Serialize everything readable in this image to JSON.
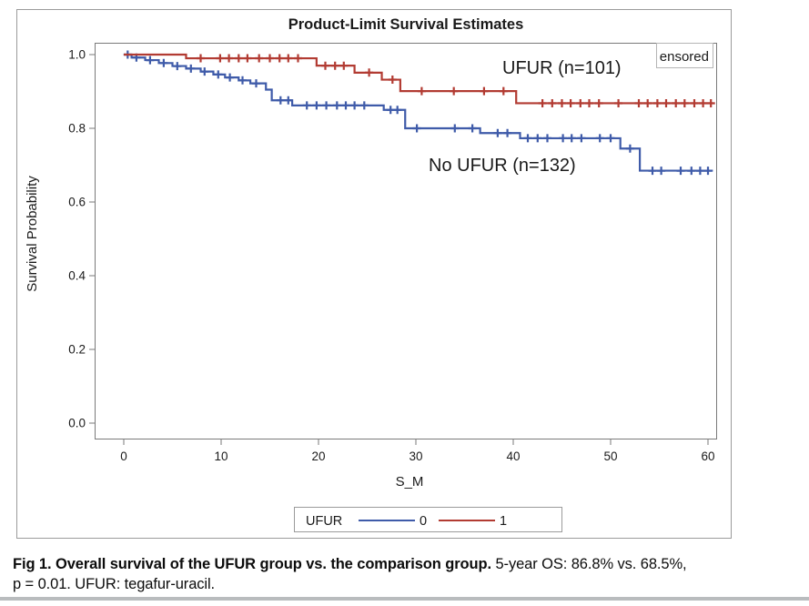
{
  "caption": {
    "bold": "Fig 1. Overall survival of the UFUR group vs. the comparison group.",
    "line1_rest": " 5-year OS: 86.8% vs. 68.5%,",
    "line2": "p = 0.01. UFUR: tegafur-uracil."
  },
  "chart_data": {
    "type": "line",
    "subtype": "kaplan-meier-step",
    "title": "Product-Limit Survival Estimates",
    "xlabel": "S_M",
    "ylabel": "Survival Probability",
    "xlim": [
      0,
      60
    ],
    "ylim": [
      0.0,
      1.0
    ],
    "grid": false,
    "inset_label": "ensored",
    "xticks": [
      {
        "v": 0,
        "label": "0"
      },
      {
        "v": 10,
        "label": "10"
      },
      {
        "v": 20,
        "label": "20"
      },
      {
        "v": 30,
        "label": "30"
      },
      {
        "v": 40,
        "label": "40"
      },
      {
        "v": 50,
        "label": "50"
      },
      {
        "v": 60,
        "label": "60"
      }
    ],
    "yticks": [
      {
        "v": 1.0,
        "label": "1.0"
      },
      {
        "v": 0.8,
        "label": "0.8"
      },
      {
        "v": 0.6,
        "label": "0.6"
      },
      {
        "v": 0.4,
        "label": "0.4"
      },
      {
        "v": 0.2,
        "label": "0.2"
      },
      {
        "v": 0.0,
        "label": "0.0"
      }
    ],
    "series": [
      {
        "id": "1",
        "annotation": "UFUR (n=101)",
        "n": 101,
        "color": "#b23b32",
        "final_survival": 0.868,
        "steps": [
          [
            0,
            1.0
          ],
          [
            6.4,
            0.99
          ],
          [
            19.8,
            0.97
          ],
          [
            23.7,
            0.951
          ],
          [
            26.5,
            0.932
          ],
          [
            28.4,
            0.901
          ],
          [
            40.3,
            0.868
          ],
          [
            60.5,
            0.868
          ]
        ],
        "censors": [
          [
            7.9,
            0.99
          ],
          [
            9.9,
            0.99
          ],
          [
            10.8,
            0.99
          ],
          [
            11.8,
            0.99
          ],
          [
            12.7,
            0.99
          ],
          [
            13.9,
            0.99
          ],
          [
            15.0,
            0.99
          ],
          [
            16.0,
            0.99
          ],
          [
            16.9,
            0.99
          ],
          [
            17.9,
            0.99
          ],
          [
            20.7,
            0.97
          ],
          [
            21.7,
            0.97
          ],
          [
            22.6,
            0.97
          ],
          [
            25.2,
            0.951
          ],
          [
            27.6,
            0.932
          ],
          [
            30.6,
            0.901
          ],
          [
            33.9,
            0.901
          ],
          [
            37.0,
            0.901
          ],
          [
            39.0,
            0.901
          ],
          [
            43.0,
            0.868
          ],
          [
            44.0,
            0.868
          ],
          [
            45.0,
            0.868
          ],
          [
            45.9,
            0.868
          ],
          [
            46.9,
            0.868
          ],
          [
            47.8,
            0.868
          ],
          [
            48.8,
            0.868
          ],
          [
            50.8,
            0.868
          ],
          [
            52.9,
            0.868
          ],
          [
            53.8,
            0.868
          ],
          [
            54.8,
            0.868
          ],
          [
            55.7,
            0.868
          ],
          [
            56.7,
            0.868
          ],
          [
            57.6,
            0.868
          ],
          [
            58.6,
            0.868
          ],
          [
            59.5,
            0.868
          ],
          [
            60.3,
            0.868
          ]
        ]
      },
      {
        "id": "0",
        "annotation": "No UFUR (n=132)",
        "n": 132,
        "color": "#3f5ba9",
        "final_survival": 0.685,
        "steps": [
          [
            0,
            1.0
          ],
          [
            0.8,
            0.992
          ],
          [
            2.2,
            0.985
          ],
          [
            3.6,
            0.977
          ],
          [
            5.0,
            0.969
          ],
          [
            6.4,
            0.962
          ],
          [
            7.9,
            0.954
          ],
          [
            9.2,
            0.946
          ],
          [
            10.4,
            0.938
          ],
          [
            11.8,
            0.93
          ],
          [
            13.0,
            0.922
          ],
          [
            14.6,
            0.905
          ],
          [
            15.2,
            0.876
          ],
          [
            17.3,
            0.862
          ],
          [
            26.7,
            0.85
          ],
          [
            28.9,
            0.8
          ],
          [
            36.6,
            0.787
          ],
          [
            40.7,
            0.773
          ],
          [
            51.0,
            0.745
          ],
          [
            53.0,
            0.685
          ],
          [
            60.5,
            0.685
          ]
        ],
        "censors": [
          [
            0.4,
            1.0
          ],
          [
            1.3,
            0.992
          ],
          [
            2.7,
            0.985
          ],
          [
            4.1,
            0.977
          ],
          [
            5.5,
            0.969
          ],
          [
            6.9,
            0.962
          ],
          [
            8.3,
            0.954
          ],
          [
            9.7,
            0.946
          ],
          [
            10.9,
            0.938
          ],
          [
            12.2,
            0.93
          ],
          [
            13.6,
            0.922
          ],
          [
            16.1,
            0.876
          ],
          [
            16.9,
            0.876
          ],
          [
            18.8,
            0.862
          ],
          [
            19.8,
            0.862
          ],
          [
            20.8,
            0.862
          ],
          [
            21.9,
            0.862
          ],
          [
            22.8,
            0.862
          ],
          [
            23.7,
            0.862
          ],
          [
            24.7,
            0.862
          ],
          [
            27.4,
            0.85
          ],
          [
            28.1,
            0.85
          ],
          [
            30.1,
            0.8
          ],
          [
            34.0,
            0.8
          ],
          [
            35.8,
            0.8
          ],
          [
            38.4,
            0.787
          ],
          [
            39.4,
            0.787
          ],
          [
            41.5,
            0.773
          ],
          [
            42.5,
            0.773
          ],
          [
            43.5,
            0.773
          ],
          [
            45.1,
            0.773
          ],
          [
            46.0,
            0.773
          ],
          [
            47.0,
            0.773
          ],
          [
            48.9,
            0.773
          ],
          [
            50.0,
            0.773
          ],
          [
            52.0,
            0.745
          ],
          [
            54.3,
            0.685
          ],
          [
            55.2,
            0.685
          ],
          [
            57.2,
            0.685
          ],
          [
            58.3,
            0.685
          ],
          [
            59.2,
            0.685
          ],
          [
            60.0,
            0.685
          ]
        ]
      }
    ],
    "legend": {
      "title": "UFUR",
      "position": "bottom",
      "entries": [
        {
          "label": "0",
          "color": "#3f5ba9"
        },
        {
          "label": "1",
          "color": "#b23b32"
        }
      ]
    }
  }
}
